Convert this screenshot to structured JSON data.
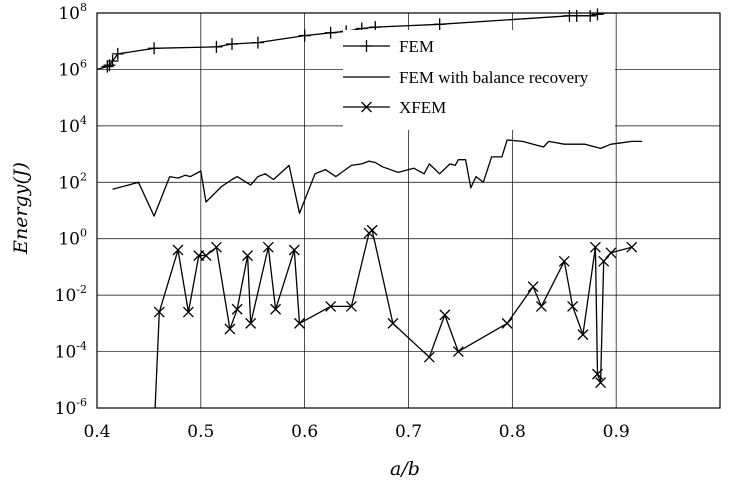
{
  "chart_data": {
    "type": "line",
    "title": "",
    "xlabel": "a/b",
    "ylabel": "Energy(J)",
    "xlim": [
      0.4,
      1.0
    ],
    "ylim_exp": [
      -6,
      8
    ],
    "yscale": "log",
    "grid": true,
    "legend_placement": "top-right",
    "x_ticks": [
      "0.4",
      "0.5",
      "0.6",
      "0.7",
      "0.8",
      "0.9"
    ],
    "y_ticks": [
      {
        "base": "10",
        "exp": "8"
      },
      {
        "base": "10",
        "exp": "6"
      },
      {
        "base": "10",
        "exp": "4"
      },
      {
        "base": "10",
        "exp": "2"
      },
      {
        "base": "10",
        "exp": "0"
      },
      {
        "base": "10",
        "exp": "-2"
      },
      {
        "base": "10",
        "exp": "-4"
      },
      {
        "base": "10",
        "exp": "-6"
      }
    ],
    "series": [
      {
        "name": "FEM",
        "marker": "plus",
        "x": [
          0.41,
          0.412,
          0.415,
          0.42,
          0.455,
          0.515,
          0.53,
          0.555,
          0.6,
          0.625,
          0.64,
          0.655,
          0.668,
          0.73,
          0.855,
          0.862,
          0.875,
          0.882
        ],
        "y_exp": [
          6.1,
          6.15,
          6.3,
          6.55,
          6.75,
          6.8,
          6.9,
          6.95,
          7.2,
          7.3,
          7.35,
          7.45,
          7.5,
          7.6,
          7.9,
          7.9,
          7.9,
          7.95
        ],
        "y_exp_line": [
          6.1,
          6.15,
          6.3,
          6.55,
          6.75,
          6.8,
          6.9,
          6.95,
          7.2,
          7.3,
          7.35,
          7.45,
          7.5,
          7.6,
          7.9,
          7.9,
          7.9,
          7.95,
          8.0,
          8.0
        ],
        "x_line": [
          0.41,
          0.412,
          0.415,
          0.42,
          0.455,
          0.515,
          0.53,
          0.555,
          0.6,
          0.625,
          0.64,
          0.655,
          0.668,
          0.73,
          0.855,
          0.862,
          0.875,
          0.882,
          0.89,
          0.9
        ]
      },
      {
        "name": "FEM with balance recovery",
        "marker": "none",
        "x": [
          0.415,
          0.44,
          0.455,
          0.47,
          0.478,
          0.485,
          0.49,
          0.5,
          0.505,
          0.52,
          0.53,
          0.535,
          0.548,
          0.555,
          0.562,
          0.57,
          0.585,
          0.595,
          0.61,
          0.62,
          0.63,
          0.645,
          0.655,
          0.662,
          0.668,
          0.675,
          0.69,
          0.705,
          0.715,
          0.72,
          0.73,
          0.74,
          0.745,
          0.748,
          0.755,
          0.76,
          0.765,
          0.772,
          0.78,
          0.79,
          0.795,
          0.81,
          0.82,
          0.83,
          0.835,
          0.85,
          0.87,
          0.885,
          0.895,
          0.905,
          0.915,
          0.925
        ],
        "y": [
          1.75,
          2.0,
          0.8,
          2.2,
          2.15,
          2.25,
          2.2,
          2.4,
          1.3,
          1.85,
          2.1,
          2.2,
          1.9,
          2.2,
          2.3,
          2.1,
          2.6,
          0.9,
          2.3,
          2.45,
          2.2,
          2.6,
          2.65,
          2.75,
          2.7,
          2.55,
          2.35,
          2.5,
          2.3,
          2.65,
          2.3,
          2.65,
          2.6,
          2.8,
          2.8,
          1.8,
          2.2,
          2.0,
          2.9,
          2.9,
          3.5,
          3.45,
          3.35,
          3.25,
          3.45,
          3.35,
          3.35,
          3.2,
          3.35,
          3.4,
          3.45,
          3.45
        ]
      },
      {
        "name": "XFEM",
        "marker": "x",
        "x": [
          0.456,
          0.46,
          0.478,
          0.488,
          0.498,
          0.505,
          0.515,
          0.528,
          0.535,
          0.545,
          0.548,
          0.565,
          0.572,
          0.59,
          0.595,
          0.625,
          0.645,
          0.662,
          0.665,
          0.685,
          0.72,
          0.735,
          0.748,
          0.795,
          0.82,
          0.828,
          0.85,
          0.858,
          0.868,
          0.88,
          0.882,
          0.885,
          0.888,
          0.895,
          0.915
        ],
        "y": [
          -6.0,
          -2.6,
          -0.4,
          -2.6,
          -0.6,
          -0.6,
          -0.3,
          -3.2,
          -2.5,
          -0.6,
          -3.0,
          -0.3,
          -2.5,
          -0.4,
          -3.0,
          -2.4,
          -2.4,
          0.2,
          0.3,
          -3.0,
          -4.2,
          -2.7,
          -4.0,
          -3.0,
          -1.7,
          -2.4,
          -0.8,
          -2.4,
          -3.4,
          -0.3,
          -4.8,
          -5.1,
          -0.8,
          -0.5,
          -0.3
        ]
      }
    ]
  }
}
